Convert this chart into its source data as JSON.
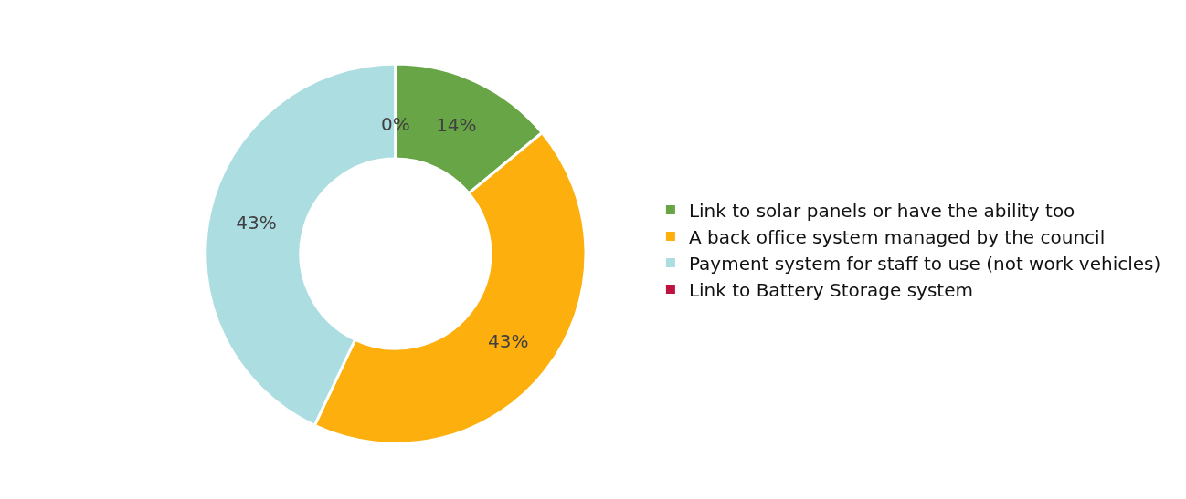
{
  "chart_data": {
    "type": "donut",
    "categories": [
      "Link to solar panels or have the ability too",
      "A back office system managed by the council",
      "Payment system for staff to use (not work vehicles)",
      "Link to Battery Storage system"
    ],
    "values": [
      14,
      43,
      43,
      0
    ],
    "colors": [
      "#68a547",
      "#fdaf0d",
      "#acdde1",
      "#be1340"
    ],
    "value_labels": [
      "14%",
      "43%",
      "43%",
      "0%"
    ],
    "legend": "right"
  }
}
